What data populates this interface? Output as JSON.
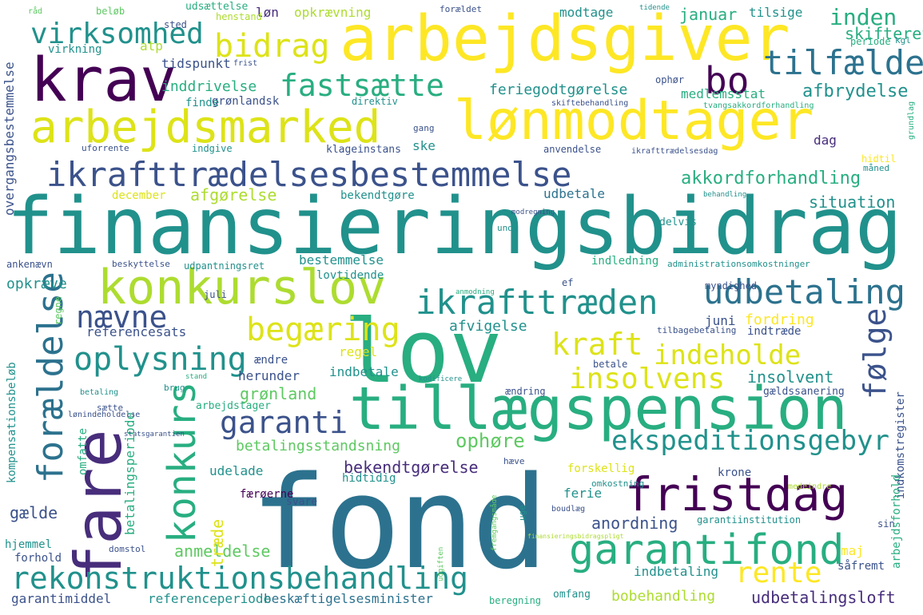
{
  "words": {
    "finansieringsbidrag": "finansieringsbidrag",
    "fond": "fond",
    "arbejdsgiver": "arbejdsgiver",
    "loenmodtager": "lønmodtager",
    "lov": "lov",
    "krav": "krav",
    "tillaegspension": "tillægspension",
    "arbejdsmarked": "arbejdsmarked",
    "fare": "fare",
    "konkurslov": "konkurslov",
    "ikrafttraedelsesbestemmelse": "ikrafttrædelsesbestemmelse",
    "rekonstruktionsbehandling": "rekonstruktionsbehandling",
    "garantifond": "garantifond",
    "fristdag": "fristdag",
    "virksomhed": "virksomhed",
    "bidrag": "bidrag",
    "bo": "bo",
    "tilfaelde": "tilfælde",
    "fastsaette": "fastsætte",
    "udbetaling": "udbetaling",
    "ikrafttraeden": "ikrafttræden",
    "oplysning": "oplysning",
    "foraeldelse": "forældelse",
    "begaering": "begæring",
    "kraft": "kraft",
    "indeholde": "indeholde",
    "insolvens": "insolvens",
    "garanti": "garanti",
    "konkurs": "konkurs",
    "ekspeditionsgebyr": "ekspeditionsgebyr",
    "foelge": "følge",
    "naevne": "nævne",
    "rente": "rente",
    "inden": "inden",
    "afbrydelse": "afbrydelse",
    "akkordforhandling": "akkordforhandling",
    "afgoerelse": "afgørelse",
    "ophoere": "ophøre",
    "bekendtgoerelse": "bekendtgørelse",
    "betalingsstandsning": "betalingsstandsning",
    "anmeldelse": "anmeldelse",
    "anordning": "anordning",
    "udbetalingsloft": "udbetalingsloft",
    "bobehandling": "bobehandling",
    "beskaeftigelsesminister": "beskæftigelsesminister",
    "referenceperiode": "referenceperiode",
    "garantimiddel": "garantimiddel",
    "gaelde": "gælde",
    "traede": "træde",
    "groenland": "grønland",
    "indbetaling": "indbetaling",
    "opkraeve": "opkræve",
    "referencesats": "referencesats",
    "situation": "situation",
    "insolvent": "insolvent",
    "skifteret": "skifteret",
    "januar": "januar",
    "feriegodtgoerelse": "feriegodtgørelse",
    "medlemsstat": "medlemsstat",
    "inddrivelse": "inddrivelse",
    "groenlandsk": "grønlandsk",
    "opkraevning": "opkrævning",
    "modtage": "modtage",
    "tilsige": "tilsige",
    "udsaettelse": "udsættelse",
    "loen": "løn",
    "henstand": "henstand",
    "atp": "atp",
    "virkning": "virkning",
    "tidspunkt": "tidspunkt",
    "overgangsbestemmelse": "overgangsbestemmelse",
    "december": "december",
    "bekendtgoere": "bekendtgøre",
    "udbetale": "udbetale",
    "bestemmelse": "bestemmelse",
    "udpantningsret": "udpantningsret",
    "indledning": "indledning",
    "lovtidende": "lovtidende",
    "juni": "juni",
    "fordring": "fordring",
    "afvigelse": "afvigelse",
    "regel": "regel",
    "indtraede": "indtræde",
    "tilbagebetaling": "tilbagebetaling",
    "indbetale": "indbetale",
    "aendre": "ændre",
    "herunder": "herunder",
    "kompensationsbeloeb": "kompensationsbeløb",
    "indkomstregister": "indkomstregister",
    "betalingsperiode": "betalingsperiode",
    "udelade": "udelade",
    "omfatte": "omfatte",
    "ferie": "ferie",
    "krone": "krone",
    "forskellig": "forskellig",
    "hidtidig": "hidtidig",
    "faeroeerne": "færøerne",
    "garantiinstitution": "garantiinstitution",
    "maj": "maj",
    "saafremt": "såfremt",
    "sin": "sin",
    "arbejdsforhold": "arbejdsforhold",
    "hjemmel": "hjemmel",
    "forhold": "forhold",
    "svare": "svare",
    "omfang": "omfang",
    "beregning": "beregning",
    "dag": "dag",
    "ske": "ske",
    "administrationsomkostninger": "administrationsomkostninger",
    "delvis": "delvis",
    "myndighed": "myndighed",
    "arbejdstager": "arbejdstager",
    "betale": "betale",
    "aendring": "ændring",
    "gaeldssanering": "gældssanering",
    "omkostning": "omkostning",
    "finde": "finde",
    "direktiv": "direktiv",
    "klageinstans": "klageinstans",
    "indgive": "indgive",
    "anvendelse": "anvendelse",
    "periode": "periode",
    "ophoer": "ophør",
    "sted": "sted",
    "beloeb": "beløb",
    "foraeldet": "forældet",
    "ankenaevn": "ankenævn",
    "beskyttelse": "beskyttelse",
    "skiftebehandling": "skiftebehandling",
    "tvangsakkordforhandling": "tvangsakkordforhandling",
    "ikrafttraedelsesdag": "ikrafttrædelsesdag",
    "uforrente": "uforrente",
    "gang": "gang",
    "hidtil": "hidtil",
    "maaned": "måned",
    "grundlag": "grundlag",
    "modregning": "modregning",
    "behandling": "behandling",
    "unde": "unde",
    "ef": "ef",
    "brug": "brug",
    "regne": "regne",
    "lonindeholdelse": "lønindeholdelse",
    "statsgarantien": "statsgarantien",
    "kodificere": "kodificere",
    "domstol": "domstol",
    "uge": "uge",
    "boudlaeg": "boudlæg",
    "stand": "stand",
    "juli": "juli",
    "betaling": "betaling",
    "saette": "sætte",
    "fremgangsmaade": "fremgangsmåde",
    "fanansieringsbidragspligt": "finansieringsbidragspligt",
    "medeindre": "medeindre",
    "haeve": "hæve",
    "udgiften": "udgiften",
    "raad": "råd",
    "tidende": "tidende",
    "frist": "frist",
    "kgl": "kgl",
    "anmodning": "anmodning"
  }
}
